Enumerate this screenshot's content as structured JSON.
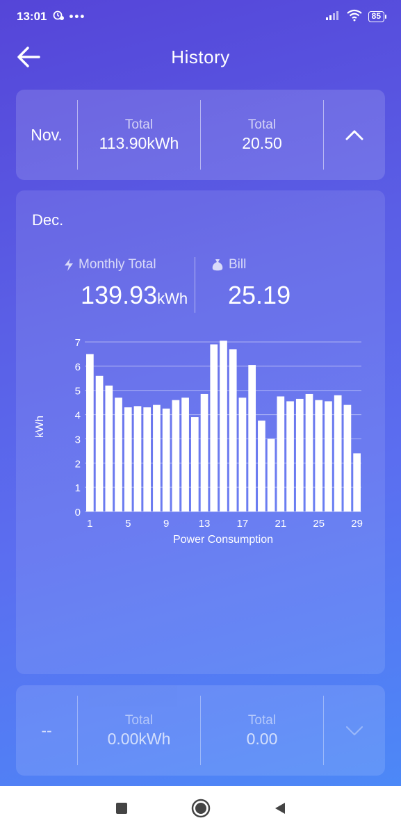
{
  "status": {
    "time": "13:01",
    "battery": "85"
  },
  "header": {
    "title": "History"
  },
  "nov": {
    "month": "Nov.",
    "total_label": "Total",
    "energy": "113.90kWh",
    "bill_label": "Total",
    "bill": "20.50"
  },
  "dec": {
    "month": "Dec.",
    "monthly_total_label": "Monthly Total",
    "monthly_total_value": "139.93",
    "monthly_total_unit": "kWh",
    "bill_label": "Bill",
    "bill_value": "25.19"
  },
  "next": {
    "month": "--",
    "total_label": "Total",
    "energy": "0.00kWh",
    "bill_label": "Total",
    "bill": "0.00"
  },
  "chart_data": {
    "type": "bar",
    "xlabel": "Power Consumption",
    "ylabel": "kWh",
    "ylim": [
      0,
      7
    ],
    "yticks": [
      0,
      1,
      2,
      3,
      4,
      5,
      6,
      7
    ],
    "xticks": [
      1,
      5,
      9,
      13,
      17,
      21,
      25,
      29
    ],
    "categories": [
      1,
      2,
      3,
      4,
      5,
      6,
      7,
      8,
      9,
      10,
      11,
      12,
      13,
      14,
      15,
      16,
      17,
      18,
      19,
      20,
      21,
      22,
      23,
      24,
      25,
      26,
      27,
      28,
      29
    ],
    "values": [
      6.5,
      5.6,
      5.2,
      4.7,
      4.3,
      4.35,
      4.3,
      4.4,
      4.25,
      4.6,
      4.7,
      3.9,
      4.85,
      6.9,
      7.05,
      6.7,
      4.7,
      6.05,
      3.75,
      3.0,
      4.75,
      4.55,
      4.65,
      4.85,
      4.6,
      4.55,
      4.8,
      4.4,
      2.4
    ],
    "grid": true,
    "bar_color": "#ffffff"
  }
}
